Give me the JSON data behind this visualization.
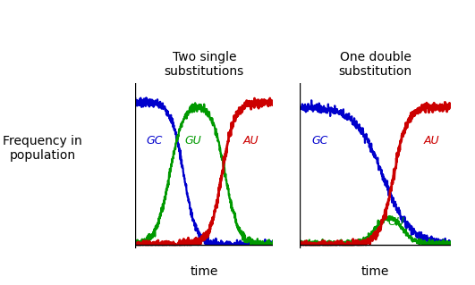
{
  "title_left": "Two single\nsubstitutions",
  "title_right": "One double\nsubstitution",
  "ylabel": "Frequency in\npopulation",
  "xlabel": "time",
  "bg_color": "#ffffff",
  "colors": {
    "GC": "#0000cc",
    "GU": "#009900",
    "AU": "#cc0000"
  },
  "fig_width": 5.31,
  "fig_height": 3.19
}
